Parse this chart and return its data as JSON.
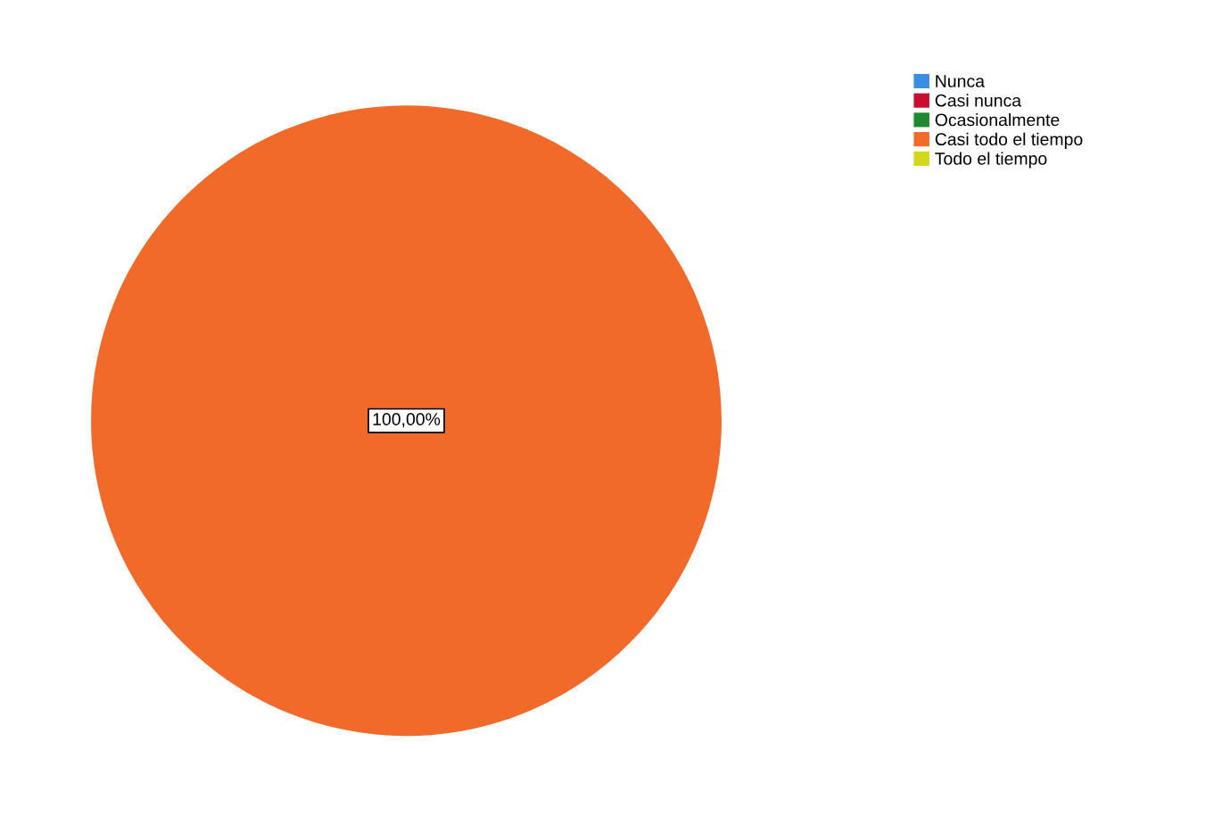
{
  "chart_data": {
    "type": "pie",
    "categories": [
      "Nunca",
      "Casi nunca",
      "Ocasionalmente",
      "Casi todo el tiempo",
      "Todo el tiempo"
    ],
    "values": [
      0,
      0,
      0,
      100,
      0
    ],
    "colors": [
      "#3a8ee6",
      "#c8102e",
      "#1e8a2e",
      "#f26a2a",
      "#d4d81c"
    ],
    "value_labels": [
      null,
      null,
      null,
      "100,00%",
      null
    ],
    "legend": "top right"
  }
}
